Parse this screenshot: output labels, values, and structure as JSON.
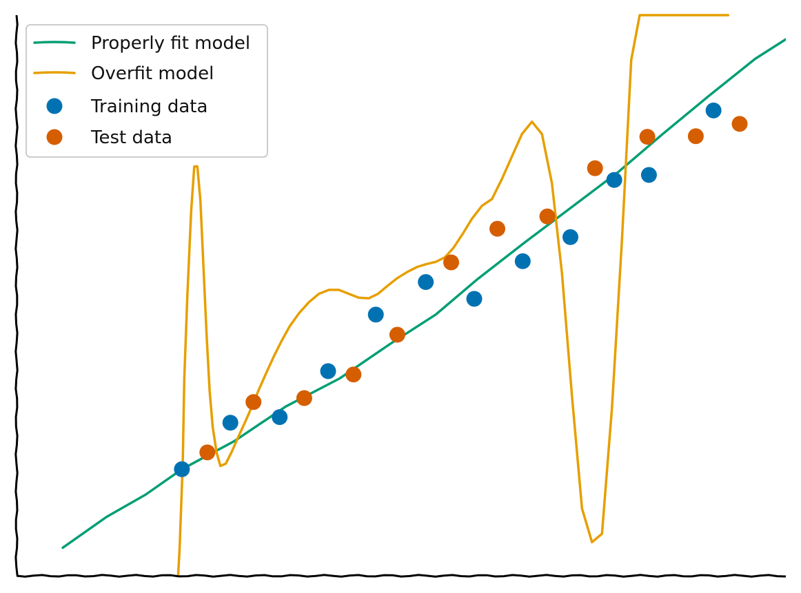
{
  "chart_data": {
    "type": "scatter",
    "xlim": [
      0,
      1
    ],
    "ylim": [
      0,
      1
    ],
    "grid": false,
    "legend_position": "top-left",
    "colors": {
      "properly_fit_model": "#009e73",
      "overfit_model": "#e69f00",
      "training_data": "#0072b2",
      "test_data": "#d55e00"
    },
    "legend": [
      {
        "label": "Properly fit model",
        "kind": "line",
        "color_key": "properly_fit_model"
      },
      {
        "label": "Overfit model",
        "kind": "line",
        "color_key": "overfit_model"
      },
      {
        "label": "Training data",
        "kind": "marker",
        "color_key": "training_data"
      },
      {
        "label": "Test data",
        "kind": "marker",
        "color_key": "test_data"
      }
    ],
    "series": [
      {
        "name": "Properly fit model",
        "kind": "line",
        "color_key": "properly_fit_model",
        "x": [
          0.06,
          0.117,
          0.168,
          0.215,
          0.283,
          0.35,
          0.42,
          0.485,
          0.545,
          0.6,
          0.66,
          0.722,
          0.782,
          0.84,
          0.9,
          0.96,
          1.0
        ],
        "y": [
          0.05,
          0.105,
          0.145,
          0.19,
          0.24,
          0.302,
          0.352,
          0.413,
          0.466,
          0.53,
          0.594,
          0.658,
          0.72,
          0.788,
          0.856,
          0.922,
          0.957
        ]
      },
      {
        "name": "Overfit model",
        "kind": "line",
        "color_key": "overfit_model",
        "x": [
          0.21,
          0.212,
          0.216,
          0.218,
          0.222,
          0.227,
          0.231,
          0.235,
          0.239,
          0.243,
          0.247,
          0.251,
          0.255,
          0.26,
          0.265,
          0.272,
          0.28,
          0.288,
          0.297,
          0.306,
          0.315,
          0.325,
          0.335,
          0.345,
          0.355,
          0.367,
          0.38,
          0.393,
          0.406,
          0.419,
          0.432,
          0.445,
          0.458,
          0.47,
          0.482,
          0.495,
          0.508,
          0.521,
          0.533,
          0.545,
          0.557,
          0.568,
          0.58,
          0.592,
          0.605,
          0.618,
          0.631,
          0.644,
          0.657,
          0.67,
          0.683,
          0.696,
          0.709,
          0.722,
          0.735,
          0.748,
          0.761,
          0.774,
          0.787,
          0.799,
          0.81,
          0.819,
          0.826,
          0.832,
          0.838,
          0.845,
          0.852,
          0.858,
          0.864,
          0.869,
          0.874,
          0.879,
          0.884,
          0.888,
          0.892,
          0.896,
          0.9,
          0.904,
          0.907,
          0.91,
          0.913,
          0.916,
          0.919,
          0.922,
          0.925
        ],
        "y": [
          0.0,
          0.05,
          0.2,
          0.35,
          0.5,
          0.65,
          0.73,
          0.73,
          0.67,
          0.55,
          0.43,
          0.33,
          0.265,
          0.22,
          0.196,
          0.2,
          0.222,
          0.247,
          0.274,
          0.302,
          0.332,
          0.363,
          0.393,
          0.42,
          0.445,
          0.468,
          0.488,
          0.503,
          0.51,
          0.51,
          0.503,
          0.496,
          0.495,
          0.503,
          0.517,
          0.531,
          0.542,
          0.551,
          0.556,
          0.56,
          0.568,
          0.585,
          0.61,
          0.637,
          0.66,
          0.672,
          0.708,
          0.748,
          0.788,
          0.81,
          0.788,
          0.7,
          0.54,
          0.32,
          0.12,
          0.06,
          0.075,
          0.3,
          0.6,
          0.92,
          1.0,
          1.0,
          1.0,
          1.0,
          1.0,
          1.0,
          1.0,
          1.0,
          1.0,
          1.0,
          1.0,
          1.0,
          1.0,
          1.0,
          1.0,
          1.0,
          1.0,
          1.0,
          1.0,
          1.0,
          1.0,
          1.0,
          1.0,
          1.0,
          1.0
        ]
      },
      {
        "name": "Training data",
        "kind": "scatter",
        "color_key": "training_data",
        "x": [
          0.215,
          0.278,
          0.342,
          0.405,
          0.467,
          0.532,
          0.595,
          0.658,
          0.72,
          0.777,
          0.822,
          0.906
        ],
        "y": [
          0.19,
          0.273,
          0.283,
          0.365,
          0.466,
          0.524,
          0.494,
          0.561,
          0.604,
          0.706,
          0.715,
          0.83
        ]
      },
      {
        "name": "Test data",
        "kind": "scatter",
        "color_key": "test_data",
        "x": [
          0.248,
          0.308,
          0.374,
          0.438,
          0.495,
          0.565,
          0.625,
          0.69,
          0.752,
          0.82,
          0.883,
          0.94
        ],
        "y": [
          0.22,
          0.31,
          0.317,
          0.359,
          0.43,
          0.559,
          0.619,
          0.641,
          0.727,
          0.783,
          0.784,
          0.806
        ]
      }
    ]
  }
}
